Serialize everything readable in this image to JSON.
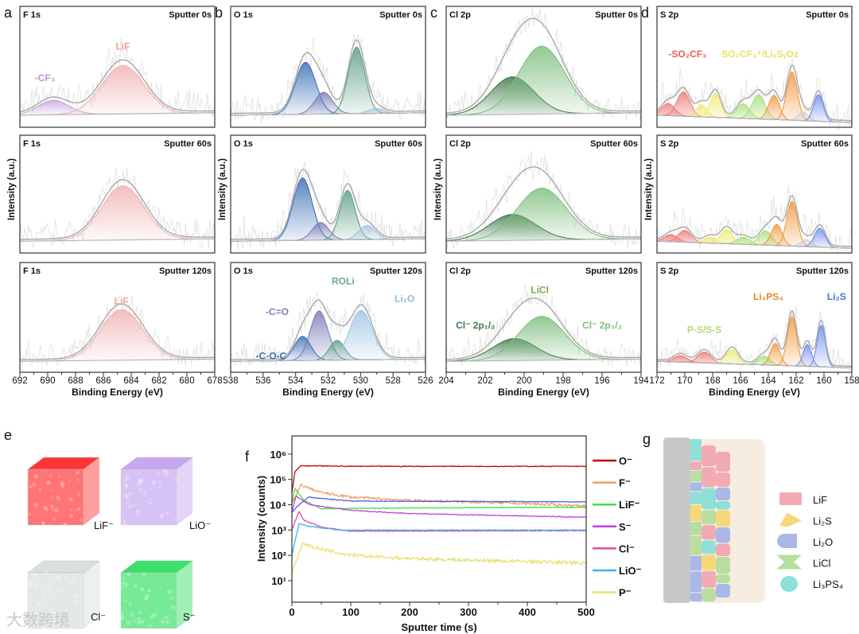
{
  "chart_data": [
    {
      "panel": "a",
      "type": "line",
      "xlabel": "Binding Energy (eV)",
      "ylabel": "Intensity (a.u.)",
      "xlim": [
        692,
        678
      ],
      "xticks": [
        "692",
        "690",
        "688",
        "686",
        "684",
        "682",
        "680",
        "678"
      ],
      "rows": [
        {
          "core_level": "F 1s",
          "sputter": "Sputter 0s",
          "peaks": [
            {
              "center": 689.6,
              "amplitude": 0.12,
              "fwhm": 2.6,
              "color": "#c9a3dc"
            },
            {
              "center": 684.6,
              "amplitude": 0.4,
              "fwhm": 3.6,
              "color": "#f2b3b3"
            }
          ],
          "labels": [
            {
              "text": "-CF₃",
              "at": 690.2,
              "color": "#c58fd6"
            },
            {
              "text": "LiF",
              "at": 684.6,
              "color": "#f0a0a0"
            }
          ]
        },
        {
          "core_level": "F 1s",
          "sputter": "Sputter 60s",
          "peaks": [
            {
              "center": 684.6,
              "amplitude": 0.46,
              "fwhm": 3.6,
              "color": "#f2b3b3"
            }
          ],
          "labels": []
        },
        {
          "core_level": "F 1s",
          "sputter": "Sputter 120s",
          "peaks": [
            {
              "center": 684.7,
              "amplitude": 0.46,
              "fwhm": 3.6,
              "color": "#f2b3b3"
            }
          ],
          "labels": [
            {
              "text": "LiF",
              "at": 684.7,
              "color": "#f0a0a0"
            }
          ]
        }
      ]
    },
    {
      "panel": "b",
      "type": "line",
      "xlabel": "Binding Energy (eV)",
      "ylabel": "Intensity (a.u.)",
      "xlim": [
        538,
        525
      ],
      "xticks": [
        "538",
        "536",
        "534",
        "532",
        "530",
        "528",
        "526"
      ],
      "rows": [
        {
          "core_level": "O 1s",
          "sputter": "Sputter 0s",
          "peaks": [
            {
              "center": 533.0,
              "amplitude": 0.43,
              "fwhm": 1.6,
              "color": "#3b6fb6"
            },
            {
              "center": 531.8,
              "amplitude": 0.18,
              "fwhm": 1.4,
              "color": "#7d7db8"
            },
            {
              "center": 529.6,
              "amplitude": 0.55,
              "fwhm": 1.3,
              "color": "#5c9f86"
            },
            {
              "center": 528.3,
              "amplitude": 0.04,
              "fwhm": 1.2,
              "color": "#9fc5e0"
            }
          ],
          "labels": []
        },
        {
          "core_level": "O 1s",
          "sputter": "Sputter 60s",
          "peaks": [
            {
              "center": 533.2,
              "amplitude": 0.53,
              "fwhm": 1.5,
              "color": "#3b6fb6"
            },
            {
              "center": 532.0,
              "amplitude": 0.15,
              "fwhm": 1.3,
              "color": "#7d7db8"
            },
            {
              "center": 530.2,
              "amplitude": 0.42,
              "fwhm": 1.2,
              "color": "#5c9f86"
            },
            {
              "center": 528.9,
              "amplitude": 0.12,
              "fwhm": 1.3,
              "color": "#9fc5e0"
            }
          ],
          "labels": []
        },
        {
          "core_level": "O 1s",
          "sputter": "Sputter 120s",
          "peaks": [
            {
              "center": 533.2,
              "amplitude": 0.22,
              "fwhm": 1.3,
              "color": "#3b6fb6"
            },
            {
              "center": 532.1,
              "amplitude": 0.45,
              "fwhm": 1.4,
              "color": "#7d7db8"
            },
            {
              "center": 530.9,
              "amplitude": 0.18,
              "fwhm": 1.2,
              "color": "#5c9f86"
            },
            {
              "center": 529.3,
              "amplitude": 0.45,
              "fwhm": 1.8,
              "color": "#9fc5e0"
            }
          ],
          "labels": [
            {
              "text": "-C=O",
              "at": 534.9,
              "color": "#7d7db8"
            },
            {
              "text": "ROLi",
              "at": 530.5,
              "color": "#6aaa8e"
            },
            {
              "text": "Li₂O",
              "at": 526.4,
              "color": "#8fbcdc"
            },
            {
              "text": "-C-O-C",
              "at": 535.3,
              "color": "#3b6fb6"
            }
          ]
        }
      ]
    },
    {
      "panel": "c",
      "type": "line",
      "xlabel": "Binding Energy (eV)",
      "ylabel": "Intensity (a.u.)",
      "xlim": [
        204,
        194
      ],
      "xticks": [
        "204",
        "202",
        "200",
        "198",
        "196",
        "194"
      ],
      "rows": [
        {
          "core_level": "Cl 2p",
          "sputter": "Sputter 0s",
          "peaks": [
            {
              "center": 200.6,
              "amplitude": 0.31,
              "fwhm": 2.6,
              "color": "#3f7a4a"
            },
            {
              "center": 199.1,
              "amplitude": 0.56,
              "fwhm": 2.8,
              "color": "#7fbf7f"
            }
          ],
          "labels": []
        },
        {
          "core_level": "Cl 2p",
          "sputter": "Sputter 60s",
          "peaks": [
            {
              "center": 200.6,
              "amplitude": 0.22,
              "fwhm": 2.8,
              "color": "#3f7a4a"
            },
            {
              "center": 199.1,
              "amplitude": 0.44,
              "fwhm": 3.0,
              "color": "#7fbf7f"
            }
          ],
          "labels": []
        },
        {
          "core_level": "Cl 2p",
          "sputter": "Sputter 120s",
          "peaks": [
            {
              "center": 200.5,
              "amplitude": 0.2,
              "fwhm": 2.6,
              "color": "#3f7a4a"
            },
            {
              "center": 199.1,
              "amplitude": 0.4,
              "fwhm": 2.8,
              "color": "#7fbf7f"
            }
          ],
          "labels": [
            {
              "text": "Cl⁻ 2p₁/₂",
              "at": 202.5,
              "color": "#3f7a4a"
            },
            {
              "text": "LiCl",
              "at": 199.2,
              "color": "#6fb04f"
            },
            {
              "text": "Cl⁻ 2p₃/₂",
              "at": 196.0,
              "color": "#7fbf7f"
            }
          ]
        }
      ]
    },
    {
      "panel": "d",
      "type": "line",
      "xlabel": "Binding Energy (eV)",
      "ylabel": "Intensity (a.u.)",
      "xlim": [
        172,
        158
      ],
      "xticks": [
        "172",
        "170",
        "168",
        "166",
        "164",
        "162",
        "160",
        "158"
      ],
      "rows": [
        {
          "core_level": "S 2p",
          "sputter": "Sputter 0s",
          "peaks": [
            {
              "center": 171.2,
              "amplitude": 0.1,
              "fwhm": 1.1,
              "color": "#f07a7a"
            },
            {
              "center": 170.1,
              "amplitude": 0.2,
              "fwhm": 1.1,
              "color": "#f07a7a"
            },
            {
              "center": 168.8,
              "amplitude": 0.1,
              "fwhm": 0.9,
              "color": "#eeea70"
            },
            {
              "center": 167.8,
              "amplitude": 0.2,
              "fwhm": 0.9,
              "color": "#eeea70"
            },
            {
              "center": 165.8,
              "amplitude": 0.12,
              "fwhm": 1.1,
              "color": "#a8e07a"
            },
            {
              "center": 164.7,
              "amplitude": 0.2,
              "fwhm": 1.1,
              "color": "#a8e07a"
            },
            {
              "center": 163.6,
              "amplitude": 0.2,
              "fwhm": 0.9,
              "color": "#f09a40"
            },
            {
              "center": 162.3,
              "amplitude": 0.4,
              "fwhm": 0.9,
              "color": "#f09a40"
            },
            {
              "center": 161.5,
              "amplitude": 0.07,
              "fwhm": 0.9,
              "color": "#cfcfcf"
            },
            {
              "center": 160.4,
              "amplitude": 0.22,
              "fwhm": 0.8,
              "color": "#6f8ff0"
            }
          ],
          "labels": [
            {
              "text": "-SO₂CF₃",
              "at": 169.8,
              "color": "#f05a5a"
            },
            {
              "text": "SO₂CF₃⁺/LiₓSᵧOz",
              "at": 164.6,
              "color": "#e6e460"
            }
          ]
        },
        {
          "core_level": "S 2p",
          "sputter": "Sputter 60s",
          "peaks": [
            {
              "center": 171.0,
              "amplitude": 0.06,
              "fwhm": 1.1,
              "color": "#f07a7a"
            },
            {
              "center": 170.0,
              "amplitude": 0.1,
              "fwhm": 1.1,
              "color": "#f07a7a"
            },
            {
              "center": 168.2,
              "amplitude": 0.05,
              "fwhm": 1.0,
              "color": "#eeea70"
            },
            {
              "center": 167.0,
              "amplitude": 0.12,
              "fwhm": 1.0,
              "color": "#eeea70"
            },
            {
              "center": 165.8,
              "amplitude": 0.06,
              "fwhm": 1.1,
              "color": "#a8e07a"
            },
            {
              "center": 164.2,
              "amplitude": 0.12,
              "fwhm": 1.1,
              "color": "#a8e07a"
            },
            {
              "center": 163.4,
              "amplitude": 0.18,
              "fwhm": 0.9,
              "color": "#f09a40"
            },
            {
              "center": 162.3,
              "amplitude": 0.38,
              "fwhm": 0.9,
              "color": "#f09a40"
            },
            {
              "center": 161.3,
              "amplitude": 0.06,
              "fwhm": 0.9,
              "color": "#cfcfcf"
            },
            {
              "center": 160.3,
              "amplitude": 0.16,
              "fwhm": 0.9,
              "color": "#6f8ff0"
            }
          ],
          "labels": []
        },
        {
          "core_level": "S 2p",
          "sputter": "Sputter 120s",
          "peaks": [
            {
              "center": 170.3,
              "amplitude": 0.06,
              "fwhm": 1.1,
              "color": "#f07a7a"
            },
            {
              "center": 168.6,
              "amplitude": 0.1,
              "fwhm": 1.1,
              "color": "#f07a7a"
            },
            {
              "center": 166.6,
              "amplitude": 0.13,
              "fwhm": 1.0,
              "color": "#eeea70"
            },
            {
              "center": 164.3,
              "amplitude": 0.08,
              "fwhm": 1.0,
              "color": "#a8e07a"
            },
            {
              "center": 163.5,
              "amplitude": 0.2,
              "fwhm": 0.8,
              "color": "#f09a40"
            },
            {
              "center": 162.3,
              "amplitude": 0.45,
              "fwhm": 0.8,
              "color": "#f09a40"
            },
            {
              "center": 161.2,
              "amplitude": 0.2,
              "fwhm": 0.7,
              "color": "#6f8ff0"
            },
            {
              "center": 160.2,
              "amplitude": 0.38,
              "fwhm": 0.7,
              "color": "#6f8ff0"
            }
          ],
          "labels": [
            {
              "text": "P-S/S-S",
              "at": 168.6,
              "color": "#b2d86a"
            },
            {
              "text": "Li₃PS₄",
              "at": 164.0,
              "color": "#e8862a"
            },
            {
              "text": "Li₂S",
              "at": 159.1,
              "color": "#4a70d8"
            }
          ]
        }
      ]
    },
    {
      "panel": "f",
      "type": "line",
      "xlabel": "Sputter time (s)",
      "ylabel": "Intensity (counts)",
      "xlim": [
        0,
        500
      ],
      "ylog_exponent_range": [
        0.15,
        6.72
      ],
      "yscale": "log",
      "xticks": [
        "0",
        "100",
        "200",
        "300",
        "400",
        "500"
      ],
      "yticks": [
        "10¹",
        "10²",
        "10³",
        "10⁴",
        "10⁵",
        "10⁶"
      ],
      "legend_position": "right",
      "series": [
        {
          "name": "O⁻",
          "color": "#c00000",
          "points": [
            [
              0,
              30000
            ],
            [
              5,
              200000
            ],
            [
              15,
              350000
            ],
            [
              100,
              330000
            ],
            [
              300,
              330000
            ],
            [
              500,
              330000
            ]
          ]
        },
        {
          "name": "F⁻",
          "color": "#f0a060",
          "points": [
            [
              0,
              10000
            ],
            [
              15,
              60000
            ],
            [
              50,
              30000
            ],
            [
              100,
              20000
            ],
            [
              200,
              15000
            ],
            [
              300,
              13000
            ],
            [
              400,
              11000
            ],
            [
              500,
              9000
            ]
          ]
        },
        {
          "name": "LiF⁻",
          "color": "#40e040",
          "points": [
            [
              0,
              10000
            ],
            [
              5,
              45000
            ],
            [
              20,
              15000
            ],
            [
              50,
              7000
            ],
            [
              200,
              7500
            ],
            [
              500,
              8000
            ]
          ]
        },
        {
          "name": "S⁻",
          "color": "#c040e0",
          "points": [
            [
              0,
              5000
            ],
            [
              7,
              22000
            ],
            [
              30,
              10000
            ],
            [
              100,
              6000
            ],
            [
              200,
              4500
            ],
            [
              500,
              3200
            ]
          ]
        },
        {
          "name": "Cl⁻",
          "color": "#e04aa0",
          "points": [
            [
              0,
              1000
            ],
            [
              12,
              5500
            ],
            [
              20,
              2500
            ],
            [
              50,
              1300
            ],
            [
              100,
              900
            ],
            [
              500,
              950
            ]
          ]
        },
        {
          "name": "LiO⁻",
          "color": "#40b0f0",
          "points": [
            [
              0,
              100
            ],
            [
              12,
              1800
            ],
            [
              30,
              1400
            ],
            [
              80,
              1000
            ],
            [
              500,
              1000
            ]
          ]
        },
        {
          "name": "P⁻",
          "color": "#e8e070",
          "points": [
            [
              0,
              20
            ],
            [
              18,
              300
            ],
            [
              50,
              170
            ],
            [
              100,
              100
            ],
            [
              200,
              75
            ],
            [
              300,
              65
            ],
            [
              500,
              50
            ]
          ]
        },
        {
          "name": "",
          "color": "#5060e0",
          "points": [
            [
              0,
              5000
            ],
            [
              10,
              9000
            ],
            [
              28,
              20000
            ],
            [
              100,
              14000
            ],
            [
              500,
              13000
            ]
          ]
        }
      ]
    }
  ],
  "panel_e": {
    "letter": "e",
    "cubes": [
      {
        "label": "LiF⁻",
        "color": "#ff2a2a"
      },
      {
        "label": "LiO⁻",
        "color": "#c3a3f0"
      },
      {
        "label": "Cl⁻",
        "color": "#d5dede"
      },
      {
        "label": "S⁻",
        "color": "#2fe060"
      }
    ]
  },
  "panel_g": {
    "letter": "g",
    "legend": [
      {
        "label": "LiF",
        "color": "#f2aab5",
        "shape": "rect"
      },
      {
        "label": "Li₂S",
        "color": "#f8d77a",
        "shape": "kite"
      },
      {
        "label": "Li₂O",
        "color": "#aab8e8",
        "shape": "dome"
      },
      {
        "label": "LiCl",
        "color": "#b8dea0",
        "shape": "bowtie"
      },
      {
        "label": "Li₃PS₄",
        "color": "#8ee0d8",
        "shape": "blob"
      }
    ]
  },
  "watermark": "大数跨境"
}
